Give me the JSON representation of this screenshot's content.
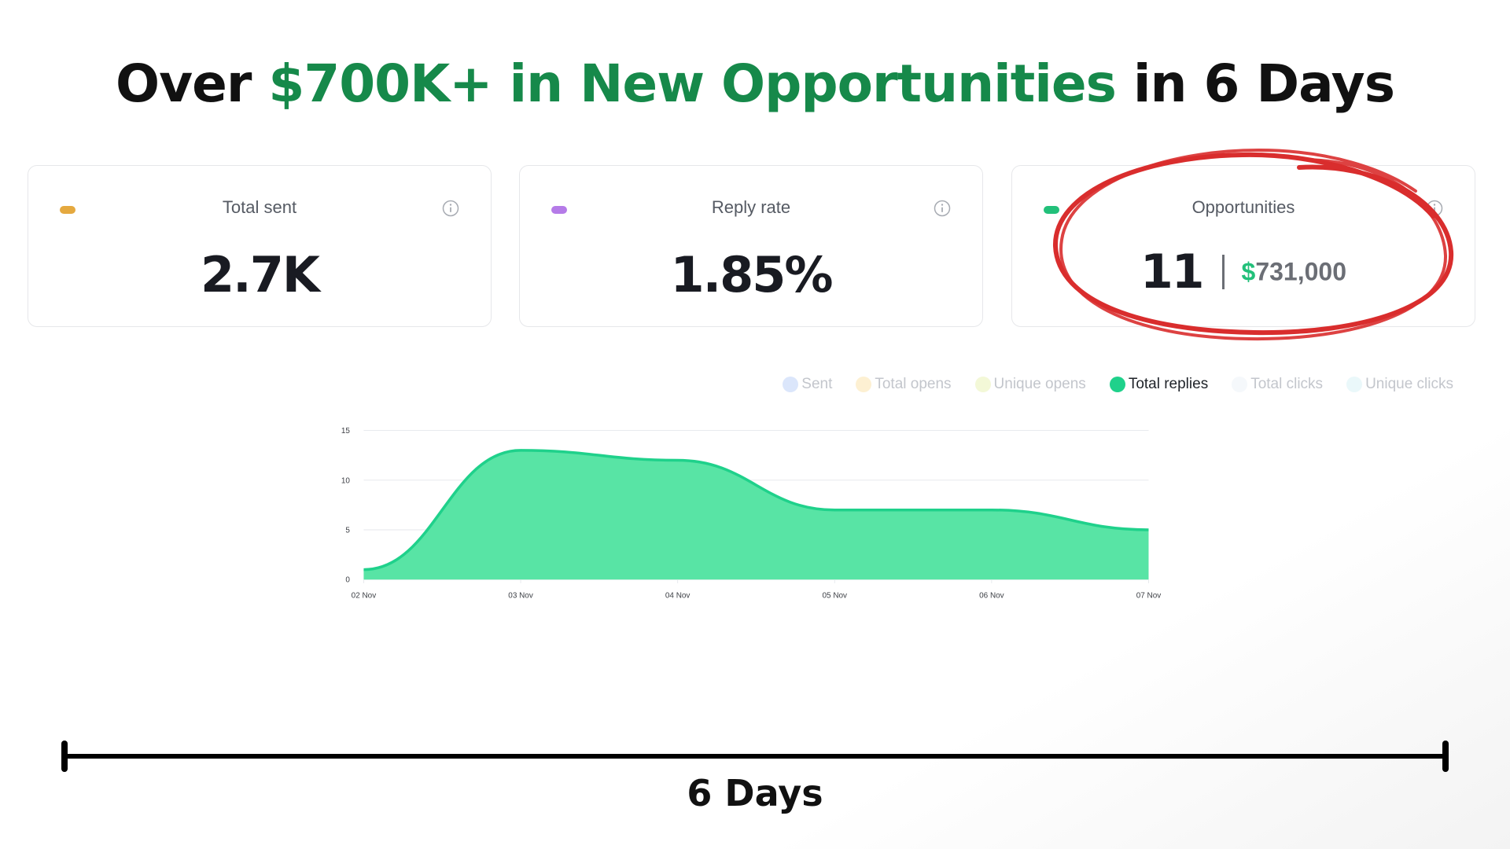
{
  "headline": {
    "prefix": "Over ",
    "highlight": "$700K+ in New Opportunities",
    "suffix": " in 6 Days"
  },
  "cards": [
    {
      "label": "Total sent",
      "value": "2.7K",
      "dot_color": "#e5a93f"
    },
    {
      "label": "Reply rate",
      "value": "1.85%",
      "dot_color": "#b57be8"
    },
    {
      "label": "Opportunities",
      "count": "11",
      "amount_currency": "$",
      "amount": "731,000",
      "dot_color": "#22c07a"
    }
  ],
  "legend": [
    {
      "label": "Sent",
      "color": "#dbe6fb",
      "active": false
    },
    {
      "label": "Total opens",
      "color": "#fdf0d2",
      "active": false
    },
    {
      "label": "Unique opens",
      "color": "#f3f8d7",
      "active": false
    },
    {
      "label": "Total replies",
      "color": "#1fd18b",
      "active": true
    },
    {
      "label": "Total clicks",
      "color": "#f5f8fb",
      "active": false
    },
    {
      "label": "Unique clicks",
      "color": "#eaf8fa",
      "active": false
    }
  ],
  "chart_data": {
    "type": "area",
    "x": [
      "02 Nov",
      "03 Nov",
      "04 Nov",
      "05 Nov",
      "06 Nov",
      "07 Nov"
    ],
    "series": [
      {
        "name": "Total replies",
        "values": [
          1,
          13,
          12,
          7,
          7,
          5
        ]
      }
    ],
    "yticks": [
      0,
      5,
      10,
      15
    ],
    "ylim": [
      0,
      15
    ],
    "grid": true,
    "legend_position": "top-right",
    "colors": {
      "line": "#1fd18b",
      "fill": "#55e3a3",
      "grid": "#e5e7eb",
      "axis_text": "#3c3f45"
    }
  },
  "footer": {
    "span_label": "6 Days"
  }
}
